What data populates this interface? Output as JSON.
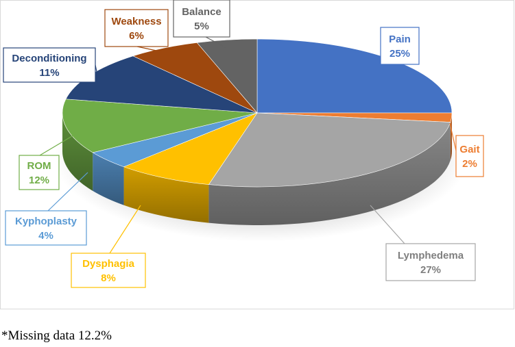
{
  "chart_data": {
    "type": "pie",
    "style": "3d-exploded-callouts",
    "categories": [
      "Pain",
      "Gait",
      "Lymphedema",
      "Dysphagia",
      "Kyphoplasty",
      "ROM",
      "Deconditioning",
      "Weakness",
      "Balance"
    ],
    "values": [
      25,
      2,
      27,
      8,
      4,
      12,
      11,
      6,
      5
    ],
    "labels": [
      "25%",
      "2%",
      "27%",
      "8%",
      "4%",
      "12%",
      "11%",
      "6%",
      "5%"
    ],
    "colors": [
      "#4472c4",
      "#ed7d31",
      "#a5a5a5",
      "#ffc000",
      "#5b9bd5",
      "#70ad47",
      "#264478",
      "#9e480e",
      "#636363"
    ],
    "legend": "none",
    "title": ""
  },
  "footnote": "*Missing data 12.2%"
}
